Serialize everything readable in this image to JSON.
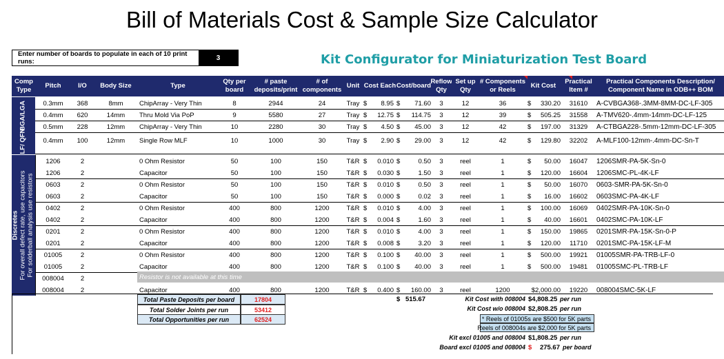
{
  "title": "Bill of Materials Cost & Sample Size Calculator",
  "prompt": {
    "label": "Enter number of boards to populate in each of 10 print runs:",
    "value": "3"
  },
  "kit_title": "Kit Configurator for Miniaturization Test Board",
  "headers": {
    "comp_type": "Comp Type",
    "pitch": "Pitch",
    "io": "I/O",
    "body_size": "Body Size",
    "type": "Type",
    "qty_per_board": "Qty per board",
    "paste_deposits": "# paste deposits/print",
    "num_components": "# of components",
    "unit": "Unit",
    "cost_each": "Cost Each",
    "cost_board": "Cost/board",
    "reflow_qty": "Reflow Qty",
    "setup_qty": "Set up Qty",
    "components_or_reels": "# Components or Reels",
    "kit_cost": "Kit Cost",
    "practical_item": "Practical Item #",
    "practical_desc": "Practical Components Description/ Component Name in ODB++ BOM"
  },
  "groups": {
    "bga": "BGA/LGA",
    "mlf": "MLF/ QFN",
    "discretes_line1": "Discretes",
    "discretes_line2": "For overall defect rate, use capacitors",
    "discretes_line3": "For solderball analysis use resistors"
  },
  "rows": [
    {
      "pitch": "0.3mm",
      "io": "368",
      "body": "8mm",
      "type": "ChipArray - Very Thin",
      "qty": "8",
      "paste": "2944",
      "comps": "24",
      "unit": "Tray",
      "cur1": "$",
      "cost_each": "8.95",
      "cur2": "$",
      "cost_board": "71.60",
      "reflow": "3",
      "setup": "12",
      "reels": "36",
      "cur3": "$",
      "kit_cost": "330.20",
      "item": "31610",
      "desc": "A-CVBGA368-.3MM-8MM-DC-LF-305"
    },
    {
      "pitch": "0.4mm",
      "io": "620",
      "body": "14mm",
      "type": "Thru Mold Via PoP",
      "qty": "9",
      "paste": "5580",
      "comps": "27",
      "unit": "Tray",
      "cur1": "$",
      "cost_each": "12.75",
      "cur2": "$",
      "cost_board": "114.75",
      "reflow": "3",
      "setup": "12",
      "reels": "39",
      "cur3": "$",
      "kit_cost": "505.25",
      "item": "31558",
      "desc": "A-TMV620-.4mm-14mm-DC-LF-125"
    },
    {
      "pitch": "0.5mm",
      "io": "228",
      "body": "12mm",
      "type": "ChipArray - Very Thin",
      "qty": "10",
      "paste": "2280",
      "comps": "30",
      "unit": "Tray",
      "cur1": "$",
      "cost_each": "4.50",
      "cur2": "$",
      "cost_board": "45.00",
      "reflow": "3",
      "setup": "12",
      "reels": "42",
      "cur3": "$",
      "kit_cost": "197.00",
      "item": "31329",
      "desc": "A-CTBGA228-.5mm-12mm-DC-LF-305"
    },
    {
      "pitch": "0.4mm",
      "io": "100",
      "body": "12mm",
      "type": "Single Row MLF",
      "qty": "10",
      "paste": "1000",
      "comps": "30",
      "unit": "Tray",
      "cur1": "$",
      "cost_each": "2.90",
      "cur2": "$",
      "cost_board": "29.00",
      "reflow": "3",
      "setup": "12",
      "reels": "42",
      "cur3": "$",
      "kit_cost": "129.80",
      "item": "32202",
      "desc": "A-MLF100-12mm-.4mm-DC-Sn-T"
    },
    {
      "pitch": "1206",
      "io": "2",
      "body": "",
      "type": "0 Ohm Resistor",
      "qty": "50",
      "paste": "100",
      "comps": "150",
      "unit": "T&R",
      "cur1": "$",
      "cost_each": "0.010",
      "cur2": "$",
      "cost_board": "0.50",
      "reflow": "3",
      "setup": "reel",
      "reels": "1",
      "cur3": "$",
      "kit_cost": "50.00",
      "item": "16047",
      "desc": "1206SMR-PA-5K-Sn-0"
    },
    {
      "pitch": "1206",
      "io": "2",
      "body": "",
      "type": "Capacitor",
      "qty": "50",
      "paste": "100",
      "comps": "150",
      "unit": "T&R",
      "cur1": "$",
      "cost_each": "0.030",
      "cur2": "$",
      "cost_board": "1.50",
      "reflow": "3",
      "setup": "reel",
      "reels": "1",
      "cur3": "$",
      "kit_cost": "120.00",
      "item": "16604",
      "desc": "1206SMC-PL-4K-LF"
    },
    {
      "pitch": "0603",
      "io": "2",
      "body": "",
      "type": "0 Ohm Resistor",
      "qty": "50",
      "paste": "100",
      "comps": "150",
      "unit": "T&R",
      "cur1": "$",
      "cost_each": "0.010",
      "cur2": "$",
      "cost_board": "0.50",
      "reflow": "3",
      "setup": "reel",
      "reels": "1",
      "cur3": "$",
      "kit_cost": "50.00",
      "item": "16070",
      "desc": "0603-SMR-PA-5K-Sn-0"
    },
    {
      "pitch": "0603",
      "io": "2",
      "body": "",
      "type": "Capacitor",
      "qty": "50",
      "paste": "100",
      "comps": "150",
      "unit": "T&R",
      "cur1": "$",
      "cost_each": "0.000",
      "cur2": "$",
      "cost_board": "0.02",
      "reflow": "3",
      "setup": "reel",
      "reels": "1",
      "cur3": "$",
      "kit_cost": "16.00",
      "item": "16602",
      "desc": "0603SMC-PA-4K-LF"
    },
    {
      "pitch": "0402",
      "io": "2",
      "body": "",
      "type": "0 Ohm Resistor",
      "qty": "400",
      "paste": "800",
      "comps": "1200",
      "unit": "T&R",
      "cur1": "$",
      "cost_each": "0.010",
      "cur2": "$",
      "cost_board": "4.00",
      "reflow": "3",
      "setup": "reel",
      "reels": "1",
      "cur3": "$",
      "kit_cost": "100.00",
      "item": "16069",
      "desc": "0402SMR-PA-10K-Sn-0"
    },
    {
      "pitch": "0402",
      "io": "2",
      "body": "",
      "type": "Capacitor",
      "qty": "400",
      "paste": "800",
      "comps": "1200",
      "unit": "T&R",
      "cur1": "$",
      "cost_each": "0.004",
      "cur2": "$",
      "cost_board": "1.60",
      "reflow": "3",
      "setup": "reel",
      "reels": "1",
      "cur3": "$",
      "kit_cost": "40.00",
      "item": "16601",
      "desc": "0402SMC-PA-10K-LF"
    },
    {
      "pitch": "0201",
      "io": "2",
      "body": "",
      "type": "0 Ohm Resistor",
      "qty": "400",
      "paste": "800",
      "comps": "1200",
      "unit": "T&R",
      "cur1": "$",
      "cost_each": "0.010",
      "cur2": "$",
      "cost_board": "4.00",
      "reflow": "3",
      "setup": "reel",
      "reels": "1",
      "cur3": "$",
      "kit_cost": "150.00",
      "item": "19865",
      "desc": "0201SMR-PA-15K-Sn-0-P"
    },
    {
      "pitch": "0201",
      "io": "2",
      "body": "",
      "type": "Capacitor",
      "qty": "400",
      "paste": "800",
      "comps": "1200",
      "unit": "T&R",
      "cur1": "$",
      "cost_each": "0.008",
      "cur2": "$",
      "cost_board": "3.20",
      "reflow": "3",
      "setup": "reel",
      "reels": "1",
      "cur3": "$",
      "kit_cost": "120.00",
      "item": "11710",
      "desc": "0201SMC-PA-15K-LF-M"
    },
    {
      "pitch": "01005",
      "io": "2",
      "body": "",
      "type": "0 Ohm Resistor",
      "qty": "400",
      "paste": "800",
      "comps": "1200",
      "unit": "T&R",
      "cur1": "$",
      "cost_each": "0.100",
      "cur2": "$",
      "cost_board": "40.00",
      "reflow": "3",
      "setup": "reel",
      "reels": "1",
      "cur3": "$",
      "kit_cost": "500.00",
      "item": "19921",
      "desc": "01005SMR-PA-TRB-LF-0"
    },
    {
      "pitch": "01005",
      "io": "2",
      "body": "",
      "type": "Capacitor",
      "qty": "400",
      "paste": "800",
      "comps": "1200",
      "unit": "T&R",
      "cur1": "$",
      "cost_each": "0.100",
      "cur2": "$",
      "cost_board": "40.00",
      "reflow": "3",
      "setup": "reel",
      "reels": "1",
      "cur3": "$",
      "kit_cost": "500.00",
      "item": "19481",
      "desc": "01005SMC-PL-TRB-LF"
    },
    {
      "pitch": "008004",
      "io": "2",
      "body": "",
      "type": "",
      "qty": "",
      "paste": "",
      "comps": "",
      "unit": "",
      "cur1": "",
      "cost_each": "",
      "cur2": "",
      "cost_board": "",
      "reflow": "",
      "setup": "",
      "reels": "",
      "cur3": "",
      "kit_cost": "",
      "item": "",
      "desc": ""
    },
    {
      "pitch": "008004",
      "io": "2",
      "body": "",
      "type": "Capacitor",
      "qty": "400",
      "paste": "800",
      "comps": "1200",
      "unit": "T&R",
      "cur1": "$",
      "cost_each": "0.400",
      "cur2": "$",
      "cost_board": "160.00",
      "reflow": "3",
      "setup": "reel",
      "reels": "1200",
      "cur3": "",
      "kit_cost": "$2,000.00",
      "item": "19220",
      "desc": "008004SMC-5K-LF"
    }
  ],
  "unavailable_note": "Resistor is not available at this time",
  "totals": {
    "paste_label": "Total Paste Deposits per board",
    "paste_value": "17804",
    "joints_label": "Total Solder Joints per run",
    "joints_value": "53412",
    "opps_label": "Total Opportunities per run",
    "opps_value": "62524",
    "cost_board_cur": "$",
    "cost_board_total": "515.67"
  },
  "summary": {
    "with_label": "Kit Cost with 008004",
    "with_value": "$4,808.25",
    "with_unit": "per run",
    "without_label": "Kit Cost w/o 008004",
    "without_value": "$2,808.25",
    "without_unit": "per run",
    "note1": "* Reels of 01005s are $500 for 5K parts",
    "note2": "Reels of 008004s are $2,000 for 5K parts",
    "excl_label": "Kit excl 01005 and 008004",
    "excl_value": "$1,808.25",
    "excl_unit": "per run",
    "board_label": "Board excl 01005 and 008004",
    "board_cur": "$",
    "board_value": "275.67",
    "board_unit": "per board"
  }
}
